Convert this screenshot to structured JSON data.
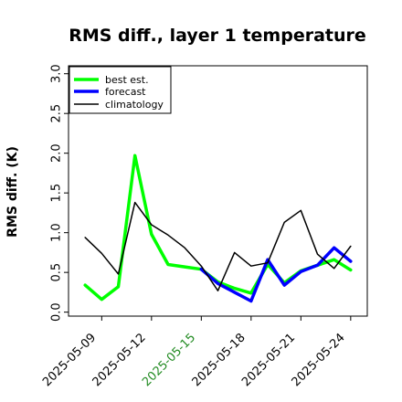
{
  "chart_data": {
    "type": "line",
    "title": "RMS diff., layer 1 temperature",
    "xlabel": "",
    "ylabel": "RMS diff. (K)",
    "ylim": [
      -0.05,
      3.1
    ],
    "yticks": [
      "0.0",
      "0.5",
      "1.0",
      "1.5",
      "2.0",
      "2.5",
      "3.0"
    ],
    "xticks": [
      "2025-05-09",
      "2025-05-12",
      "2025-05-15",
      "2025-05-18",
      "2025-05-21",
      "2025-05-24"
    ],
    "highlighted_xtick": "2025-05-15",
    "highlight_color": "#228B22",
    "grid": false,
    "legend_position": "top-left",
    "series": [
      {
        "name": "best est.",
        "color": "#00ff00",
        "x": [
          "2025-05-08",
          "2025-05-09",
          "2025-05-10",
          "2025-05-11",
          "2025-05-12",
          "2025-05-13",
          "2025-05-14",
          "2025-05-15",
          "2025-05-16",
          "2025-05-17",
          "2025-05-18",
          "2025-05-19",
          "2025-05-20",
          "2025-05-21",
          "2025-05-22",
          "2025-05-23",
          "2025-05-24"
        ],
        "values": [
          0.34,
          0.16,
          0.32,
          1.97,
          0.98,
          0.6,
          0.57,
          0.54,
          0.38,
          0.3,
          0.24,
          0.6,
          0.37,
          0.52,
          0.59,
          0.66,
          0.53
        ]
      },
      {
        "name": "forecast",
        "color": "#0000ff",
        "x": [
          "2025-05-15",
          "2025-05-16",
          "2025-05-17",
          "2025-05-18",
          "2025-05-19",
          "2025-05-20",
          "2025-05-21",
          "2025-05-22",
          "2025-05-23",
          "2025-05-24"
        ],
        "values": [
          0.54,
          0.36,
          0.25,
          0.14,
          0.66,
          0.34,
          0.51,
          0.59,
          0.81,
          0.64
        ]
      },
      {
        "name": "climatology",
        "color": "#000000",
        "x": [
          "2025-05-08",
          "2025-05-09",
          "2025-05-10",
          "2025-05-11",
          "2025-05-12",
          "2025-05-13",
          "2025-05-14",
          "2025-05-15",
          "2025-05-16",
          "2025-05-17",
          "2025-05-18",
          "2025-05-19",
          "2025-05-20",
          "2025-05-21",
          "2025-05-22",
          "2025-05-23",
          "2025-05-24"
        ],
        "values": [
          0.94,
          0.74,
          0.48,
          1.38,
          1.1,
          0.97,
          0.81,
          0.58,
          0.27,
          0.75,
          0.58,
          0.62,
          1.13,
          1.28,
          0.73,
          0.55,
          0.83
        ]
      }
    ]
  }
}
